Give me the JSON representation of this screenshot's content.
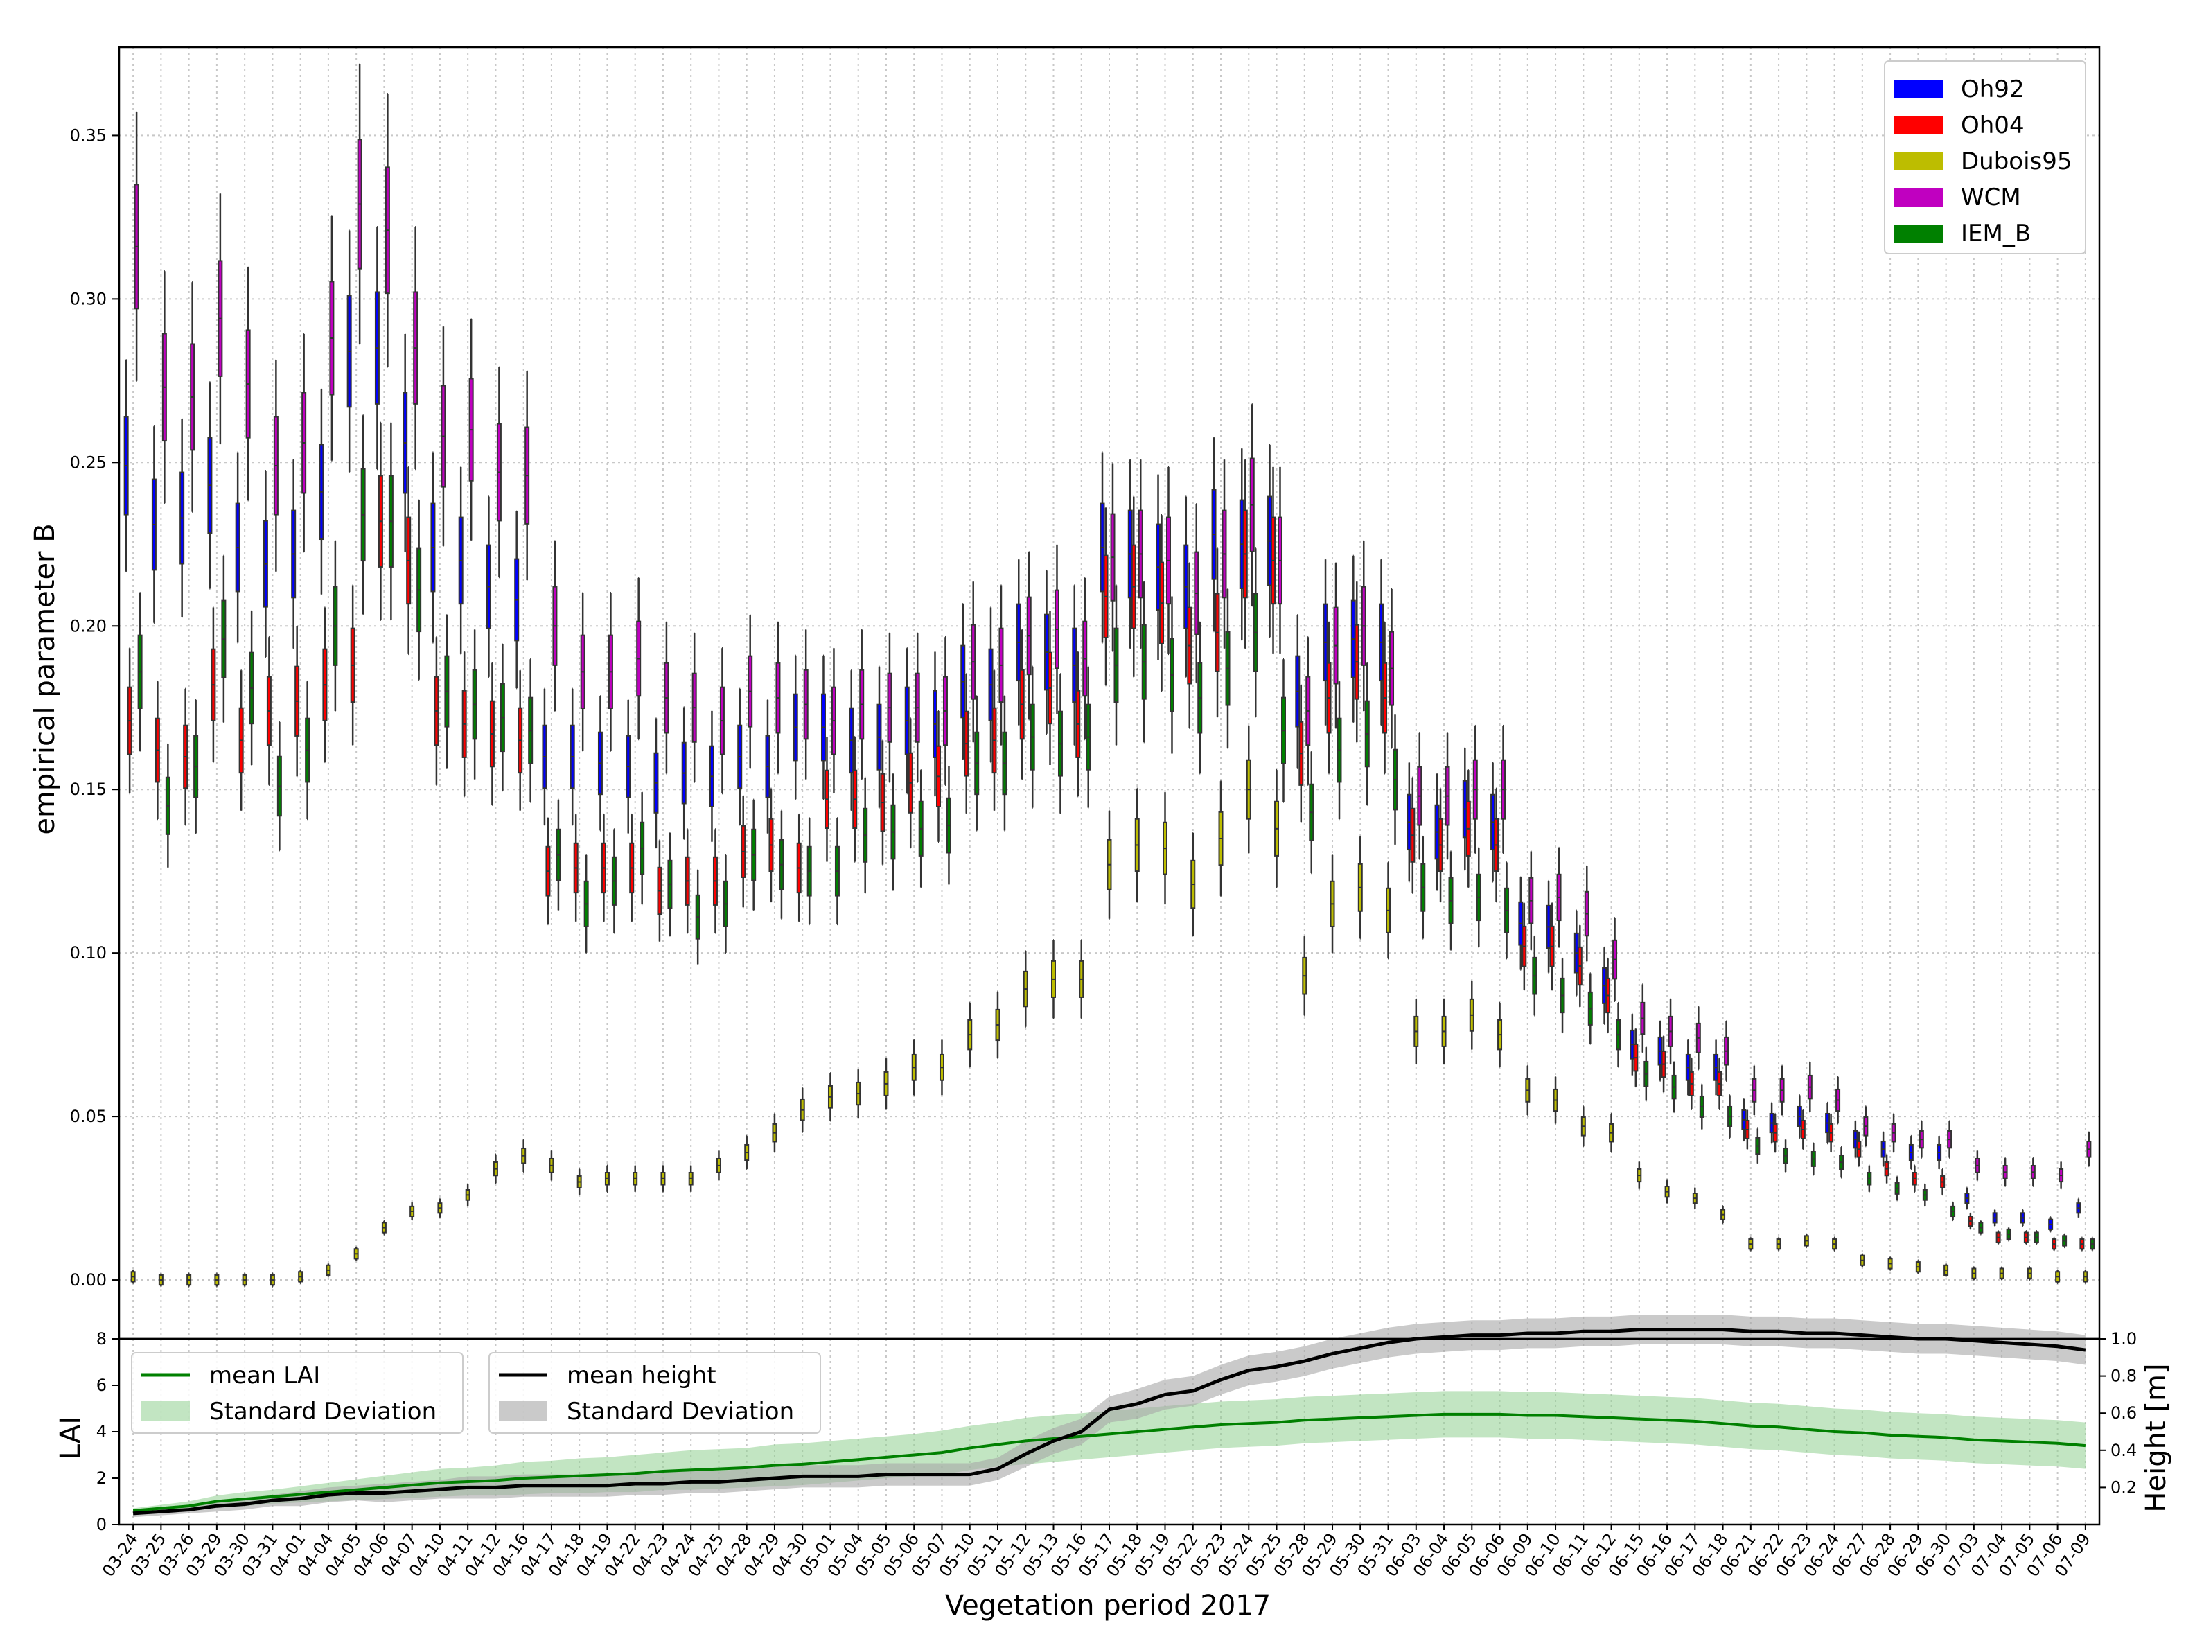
{
  "chart_data": [
    {
      "type": "box",
      "ylabel": "empirical parameter B",
      "ylim": [
        -0.018,
        0.377
      ],
      "yticks": [
        "0.00",
        "0.05",
        "0.10",
        "0.15",
        "0.20",
        "0.25",
        "0.30",
        "0.35"
      ],
      "grid": true,
      "legend_position": "top-right",
      "categories": [
        "03-24",
        "03-25",
        "03-26",
        "03-29",
        "03-30",
        "03-31",
        "04-01",
        "04-04",
        "04-05",
        "04-06",
        "04-07",
        "04-10",
        "04-11",
        "04-12",
        "04-16",
        "04-17",
        "04-18",
        "04-19",
        "04-22",
        "04-23",
        "04-24",
        "04-25",
        "04-28",
        "04-29",
        "04-30",
        "05-01",
        "05-04",
        "05-05",
        "05-06",
        "05-07",
        "05-10",
        "05-11",
        "05-12",
        "05-13",
        "05-16",
        "05-17",
        "05-18",
        "05-19",
        "05-22",
        "05-23",
        "05-24",
        "05-25",
        "05-28",
        "05-29",
        "05-30",
        "05-31",
        "06-03",
        "06-04",
        "06-05",
        "06-06",
        "06-09",
        "06-10",
        "06-11",
        "06-12",
        "06-15",
        "06-16",
        "06-17",
        "06-18",
        "06-21",
        "06-22",
        "06-23",
        "06-24",
        "06-27",
        "06-28",
        "06-29",
        "06-30",
        "07-03",
        "07-04",
        "07-05",
        "07-06",
        "07-09"
      ],
      "series": [
        {
          "name": "Oh92",
          "color": "#0000ff",
          "values": [
            0.249,
            0.231,
            0.233,
            0.243,
            0.224,
            0.219,
            0.222,
            0.241,
            0.284,
            0.285,
            0.256,
            0.224,
            0.22,
            0.212,
            0.208,
            0.16,
            0.16,
            0.158,
            0.157,
            0.152,
            0.155,
            0.154,
            0.16,
            0.157,
            0.169,
            0.169,
            0.165,
            0.166,
            0.171,
            0.17,
            0.183,
            0.182,
            0.195,
            0.192,
            0.188,
            0.224,
            0.222,
            0.218,
            0.212,
            0.228,
            0.225,
            0.226,
            0.18,
            0.195,
            0.196,
            0.195,
            0.14,
            0.137,
            0.144,
            0.14,
            0.109,
            0.108,
            0.1,
            0.09,
            0.072,
            0.07,
            0.065,
            0.065,
            0.049,
            0.048,
            0.05,
            0.048,
            0.043,
            0.04,
            0.039,
            0.039,
            0.025,
            0.019,
            0.019,
            0.017,
            0.022
          ]
        },
        {
          "name": "Oh04",
          "color": "#ff0000",
          "values": [
            0.171,
            0.162,
            0.16,
            0.182,
            0.165,
            0.174,
            0.177,
            0.182,
            0.188,
            0.232,
            0.22,
            0.174,
            0.17,
            0.167,
            0.165,
            0.125,
            0.126,
            0.126,
            0.126,
            0.119,
            0.122,
            0.122,
            0.131,
            0.133,
            0.126,
            0.147,
            0.147,
            0.146,
            0.152,
            0.154,
            0.164,
            0.165,
            0.176,
            0.181,
            0.17,
            0.209,
            0.212,
            0.207,
            0.194,
            0.198,
            0.222,
            0.22,
            0.161,
            0.178,
            0.189,
            0.178,
            0.136,
            0.133,
            0.138,
            0.133,
            0.102,
            0.102,
            0.096,
            0.087,
            0.068,
            0.066,
            0.06,
            0.06,
            0.046,
            0.045,
            0.046,
            0.045,
            0.04,
            0.034,
            0.031,
            0.03,
            0.018,
            0.013,
            0.013,
            0.011,
            0.011
          ]
        },
        {
          "name": "Dubois95",
          "color": "#bdbd00",
          "values": [
            0.001,
            0.0,
            0.0,
            0.0,
            0.0,
            0.0,
            0.001,
            0.003,
            0.008,
            0.016,
            0.021,
            0.022,
            0.026,
            0.034,
            0.038,
            0.035,
            0.03,
            0.031,
            0.031,
            0.031,
            0.031,
            0.035,
            0.039,
            0.045,
            0.052,
            0.056,
            0.057,
            0.06,
            0.065,
            0.065,
            0.075,
            0.078,
            0.089,
            0.092,
            0.092,
            0.127,
            0.133,
            0.132,
            0.121,
            0.135,
            0.15,
            0.138,
            0.093,
            0.115,
            0.12,
            0.113,
            0.076,
            0.076,
            0.081,
            0.075,
            0.058,
            0.055,
            0.047,
            0.045,
            0.032,
            0.027,
            0.025,
            0.02,
            0.011,
            0.011,
            0.012,
            0.011,
            0.006,
            0.005,
            0.004,
            0.003,
            0.002,
            0.002,
            0.002,
            0.001,
            0.001
          ]
        },
        {
          "name": "WCM",
          "color": "#c000c0",
          "values": [
            0.316,
            0.273,
            0.27,
            0.294,
            0.274,
            0.249,
            0.256,
            0.288,
            0.329,
            0.321,
            0.285,
            0.258,
            0.26,
            0.247,
            0.246,
            0.2,
            0.186,
            0.186,
            0.19,
            0.178,
            0.175,
            0.171,
            0.18,
            0.178,
            0.176,
            0.171,
            0.176,
            0.175,
            0.175,
            0.174,
            0.189,
            0.188,
            0.197,
            0.199,
            0.19,
            0.221,
            0.222,
            0.22,
            0.21,
            0.222,
            0.237,
            0.22,
            0.174,
            0.194,
            0.2,
            0.187,
            0.148,
            0.148,
            0.15,
            0.15,
            0.116,
            0.117,
            0.112,
            0.098,
            0.08,
            0.076,
            0.074,
            0.07,
            0.058,
            0.058,
            0.059,
            0.055,
            0.047,
            0.045,
            0.043,
            0.043,
            0.035,
            0.033,
            0.033,
            0.032,
            0.04
          ]
        },
        {
          "name": "IEM_B",
          "color": "#008000",
          "values": [
            0.186,
            0.145,
            0.157,
            0.196,
            0.181,
            0.151,
            0.162,
            0.2,
            0.234,
            0.232,
            0.211,
            0.18,
            0.176,
            0.172,
            0.168,
            0.13,
            0.115,
            0.122,
            0.132,
            0.121,
            0.111,
            0.115,
            0.13,
            0.127,
            0.125,
            0.125,
            0.136,
            0.137,
            0.138,
            0.139,
            0.158,
            0.158,
            0.166,
            0.164,
            0.166,
            0.188,
            0.189,
            0.185,
            0.178,
            0.187,
            0.198,
            0.168,
            0.143,
            0.162,
            0.167,
            0.153,
            0.12,
            0.116,
            0.117,
            0.113,
            0.093,
            0.087,
            0.083,
            0.075,
            0.063,
            0.059,
            0.053,
            0.05,
            0.041,
            0.038,
            0.037,
            0.036,
            0.031,
            0.028,
            0.026,
            0.021,
            0.016,
            0.014,
            0.013,
            0.012,
            0.011
          ]
        }
      ]
    },
    {
      "type": "line",
      "xlabel": "Vegetation period 2017",
      "ylabel": "LAI",
      "ylim": [
        0,
        8
      ],
      "yticks": [
        "0",
        "2",
        "4",
        "6",
        "8"
      ],
      "y2label": "Height [m]",
      "y2lim": [
        0,
        1.0
      ],
      "y2ticks": [
        "0.2",
        "0.4",
        "0.6",
        "0.8",
        "1.0"
      ],
      "categories_ref": "same as panel 1",
      "legend1": {
        "mean": "mean LAI",
        "std": "Standard Deviation"
      },
      "legend2": {
        "mean": "mean height",
        "std": "Standard Deviation"
      },
      "series": [
        {
          "name": "mean LAI",
          "color": "#008000",
          "band_color": "#8fcf8f",
          "values": [
            0.6,
            0.7,
            0.8,
            1.0,
            1.1,
            1.2,
            1.3,
            1.4,
            1.5,
            1.6,
            1.7,
            1.8,
            1.85,
            1.9,
            2.0,
            2.05,
            2.1,
            2.15,
            2.2,
            2.3,
            2.35,
            2.4,
            2.45,
            2.55,
            2.6,
            2.7,
            2.8,
            2.9,
            3.0,
            3.1,
            3.3,
            3.45,
            3.6,
            3.7,
            3.8,
            3.9,
            4.0,
            4.1,
            4.2,
            4.3,
            4.35,
            4.4,
            4.5,
            4.55,
            4.6,
            4.65,
            4.7,
            4.75,
            4.75,
            4.75,
            4.7,
            4.7,
            4.65,
            4.6,
            4.55,
            4.5,
            4.45,
            4.35,
            4.25,
            4.2,
            4.1,
            4.0,
            3.95,
            3.85,
            3.8,
            3.75,
            3.65,
            3.6,
            3.55,
            3.5,
            3.4
          ],
          "std": [
            0.1,
            0.15,
            0.2,
            0.25,
            0.3,
            0.3,
            0.35,
            0.4,
            0.45,
            0.5,
            0.55,
            0.6,
            0.6,
            0.65,
            0.7,
            0.7,
            0.75,
            0.75,
            0.8,
            0.8,
            0.85,
            0.85,
            0.85,
            0.9,
            0.9,
            0.9,
            0.9,
            0.9,
            0.9,
            0.95,
            0.95,
            0.95,
            1.0,
            1.0,
            1.0,
            1.0,
            1.0,
            1.0,
            1.0,
            1.0,
            1.0,
            1.0,
            1.0,
            1.0,
            1.0,
            1.0,
            1.0,
            1.0,
            1.0,
            1.0,
            1.0,
            1.0,
            1.0,
            1.0,
            1.0,
            1.0,
            1.0,
            1.0,
            1.0,
            1.0,
            1.0,
            1.0,
            1.0,
            1.0,
            1.0,
            1.0,
            1.0,
            1.0,
            1.0,
            1.0,
            1.0
          ]
        },
        {
          "name": "mean height",
          "color": "#000000",
          "band_color": "#a6a6a6",
          "values": [
            0.06,
            0.07,
            0.08,
            0.1,
            0.11,
            0.13,
            0.14,
            0.16,
            0.17,
            0.17,
            0.18,
            0.19,
            0.2,
            0.2,
            0.21,
            0.21,
            0.21,
            0.21,
            0.22,
            0.22,
            0.23,
            0.23,
            0.24,
            0.25,
            0.26,
            0.26,
            0.26,
            0.27,
            0.27,
            0.27,
            0.27,
            0.3,
            0.38,
            0.45,
            0.5,
            0.62,
            0.65,
            0.7,
            0.72,
            0.78,
            0.83,
            0.85,
            0.88,
            0.92,
            0.95,
            0.98,
            1.0,
            1.01,
            1.02,
            1.02,
            1.03,
            1.03,
            1.04,
            1.04,
            1.05,
            1.05,
            1.05,
            1.05,
            1.04,
            1.04,
            1.03,
            1.03,
            1.02,
            1.01,
            1.0,
            1.0,
            0.99,
            0.98,
            0.97,
            0.96,
            0.94
          ],
          "std": [
            0.02,
            0.02,
            0.02,
            0.03,
            0.03,
            0.03,
            0.04,
            0.04,
            0.04,
            0.05,
            0.05,
            0.05,
            0.06,
            0.06,
            0.06,
            0.06,
            0.06,
            0.06,
            0.06,
            0.06,
            0.06,
            0.06,
            0.06,
            0.06,
            0.06,
            0.06,
            0.06,
            0.06,
            0.06,
            0.06,
            0.06,
            0.06,
            0.07,
            0.07,
            0.07,
            0.07,
            0.08,
            0.08,
            0.08,
            0.08,
            0.08,
            0.08,
            0.08,
            0.08,
            0.08,
            0.08,
            0.08,
            0.08,
            0.08,
            0.08,
            0.08,
            0.08,
            0.08,
            0.08,
            0.08,
            0.08,
            0.08,
            0.08,
            0.08,
            0.08,
            0.08,
            0.08,
            0.08,
            0.08,
            0.08,
            0.08,
            0.08,
            0.08,
            0.08,
            0.08,
            0.08
          ]
        }
      ]
    }
  ]
}
